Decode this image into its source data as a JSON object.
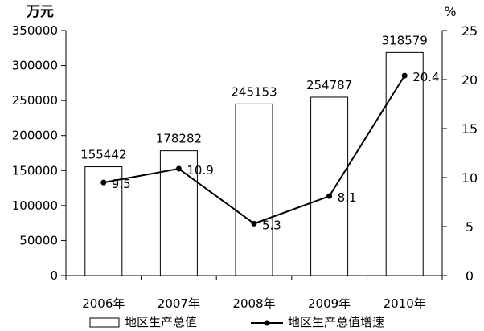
{
  "chart_data": {
    "type": "bar",
    "left_unit": "万元",
    "right_unit": "%",
    "categories": [
      "2006年",
      "2007年",
      "2008年",
      "2009年",
      "2010年"
    ],
    "series": [
      {
        "name": "地区生产总值",
        "type": "bar",
        "axis": "left",
        "values": [
          155442,
          178282,
          245153,
          254787,
          318579
        ]
      },
      {
        "name": "地区生产总值增速",
        "type": "line",
        "axis": "right",
        "values": [
          9.5,
          10.9,
          5.3,
          8.1,
          20.4
        ]
      }
    ],
    "y_left": {
      "min": 0,
      "max": 350000,
      "ticks": [
        0,
        50000,
        100000,
        150000,
        200000,
        250000,
        300000,
        350000
      ]
    },
    "y_right": {
      "min": 0,
      "max": 25,
      "ticks": [
        0,
        5,
        10,
        15,
        20,
        25
      ]
    },
    "grid": false,
    "legend_position": "bottom"
  }
}
